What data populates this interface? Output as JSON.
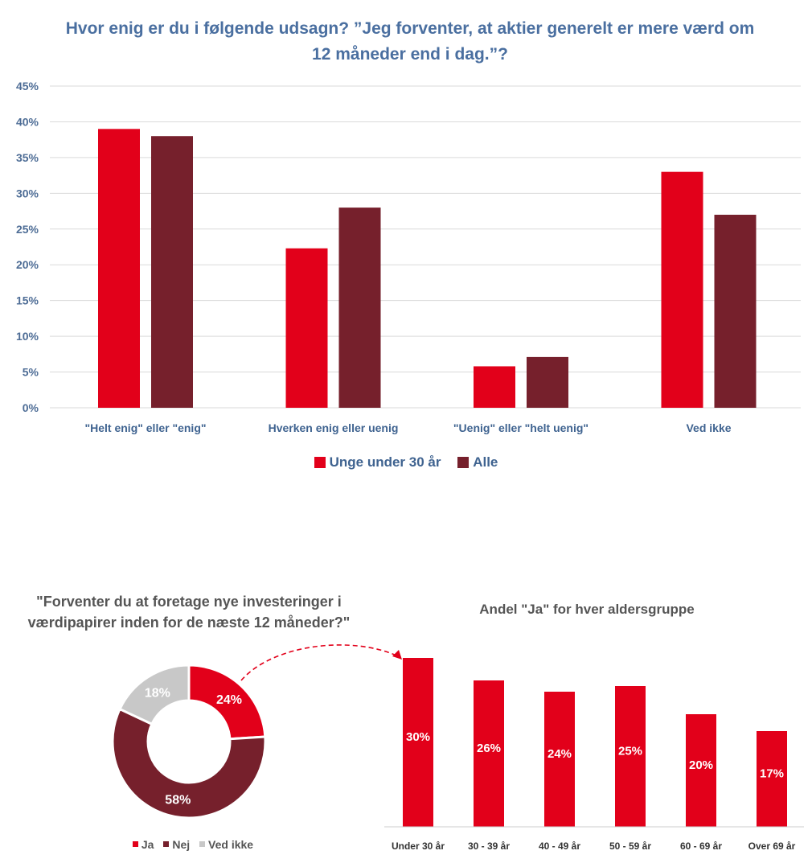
{
  "chart_data": [
    {
      "type": "bar",
      "title": "Hvor enig er du i følgende udsagn? ”Jeg forventer, at aktier generelt er mere værd om 12 måneder end i dag.”?",
      "categories": [
        "\"Helt enig\" eller \"enig\"",
        "Hverken enig eller uenig",
        "\"Uenig\" eller \"helt uenig\"",
        "Ved ikke"
      ],
      "series": [
        {
          "name": "Unge under 30 år",
          "values": [
            39,
            22.3,
            5.8,
            33
          ],
          "color": "#e2001a"
        },
        {
          "name": "Alle",
          "values": [
            38,
            28,
            7.1,
            27
          ],
          "color": "#76202c"
        }
      ],
      "yticks": [
        "0%",
        "5%",
        "10%",
        "15%",
        "20%",
        "25%",
        "30%",
        "35%",
        "40%",
        "45%"
      ],
      "ylim": [
        0,
        45
      ],
      "grid": true,
      "legend": "bottom"
    },
    {
      "type": "pie",
      "title": "\"Forventer du at foretage nye investeringer i værdipapirer inden for de næste 12 måneder?\"",
      "labels": [
        "Ja",
        "Nej",
        "Ved ikke"
      ],
      "values": [
        24,
        58,
        18
      ],
      "value_labels": [
        "24%",
        "58%",
        "18%"
      ],
      "colors": [
        "#e2001a",
        "#76202c",
        "#c8c8c8"
      ],
      "legend": "bottom"
    },
    {
      "type": "bar",
      "title": "Andel \"Ja\" for hver aldersgruppe",
      "categories": [
        "Under 30 år",
        "30 - 39 år",
        "40 - 49 år",
        "50 - 59 år",
        "60 - 69 år",
        "Over 69 år"
      ],
      "values": [
        30,
        26,
        24,
        25,
        20,
        17
      ],
      "value_labels": [
        "30%",
        "26%",
        "24%",
        "25%",
        "20%",
        "17%"
      ],
      "color": "#e2001a",
      "ylim": [
        0,
        30
      ]
    }
  ]
}
